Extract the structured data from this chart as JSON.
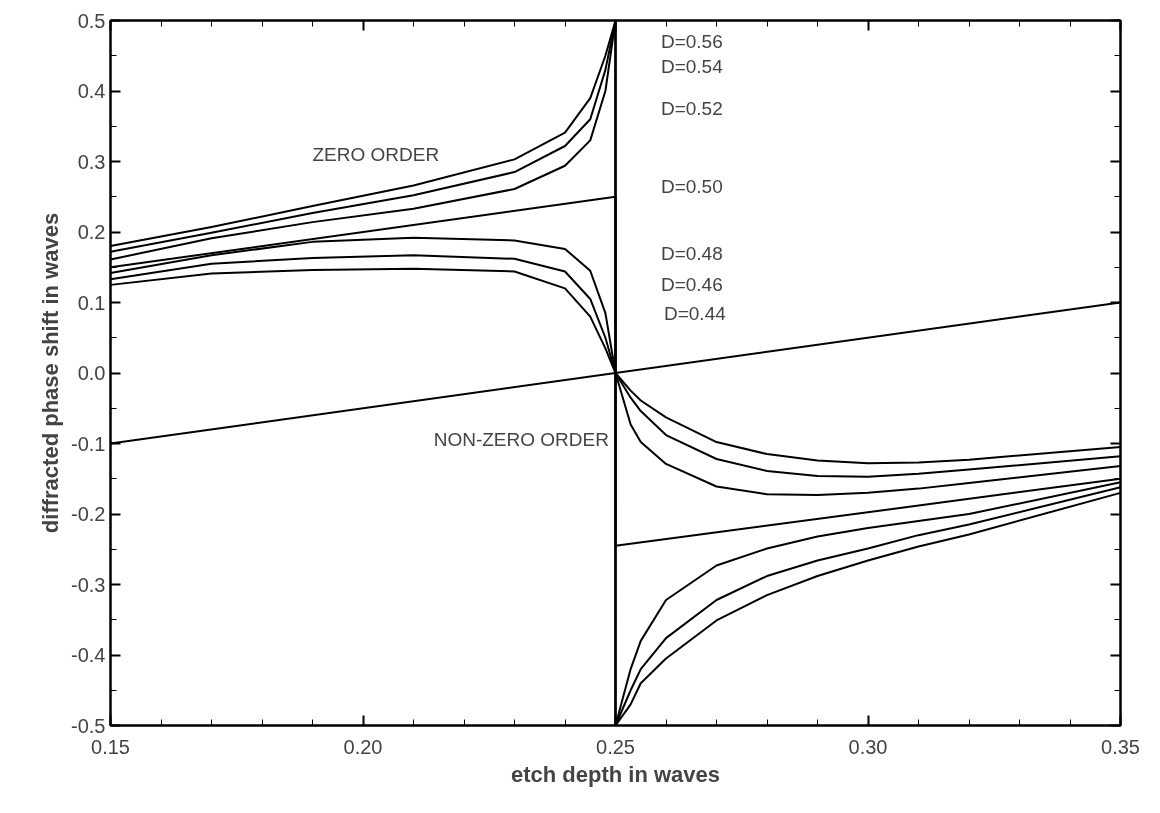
{
  "chart_data": {
    "type": "line",
    "xlabel": "etch depth in waves",
    "ylabel": "diffracted phase shift in waves",
    "xlim": [
      0.15,
      0.35
    ],
    "ylim": [
      -0.5,
      0.5
    ],
    "xticks": [
      {
        "value": 0.15,
        "label": "0.15"
      },
      {
        "value": 0.2,
        "label": "0.20"
      },
      {
        "value": 0.25,
        "label": "0.25"
      },
      {
        "value": 0.3,
        "label": "0.30"
      },
      {
        "value": 0.35,
        "label": "0.35"
      }
    ],
    "yticks": [
      {
        "value": -0.5,
        "label": "-0.5"
      },
      {
        "value": -0.4,
        "label": "-0.4"
      },
      {
        "value": -0.3,
        "label": "-0.3"
      },
      {
        "value": -0.2,
        "label": "-0.2"
      },
      {
        "value": -0.1,
        "label": "-0.1"
      },
      {
        "value": 0,
        "label": "0.0"
      },
      {
        "value": 0.1,
        "label": "0.1"
      },
      {
        "value": 0.2,
        "label": "0.2"
      },
      {
        "value": 0.3,
        "label": "0.3"
      },
      {
        "value": 0.4,
        "label": "0.4"
      },
      {
        "value": 0.5,
        "label": "0.5"
      }
    ],
    "grid": false,
    "marker": "none",
    "line_style": "solid",
    "series": [
      {
        "color": "#000000",
        "x": [
          0.15,
          0.17,
          0.19,
          0.21,
          0.23,
          0.24,
          0.245,
          0.248,
          0.25,
          0.25,
          0.253,
          0.255,
          0.26,
          0.27,
          0.28,
          0.29,
          0.3,
          0.31,
          0.32,
          0.35
        ],
        "values": [
          0.18,
          0.207,
          0.237,
          0.266,
          0.303,
          0.341,
          0.39,
          0.45,
          0.5,
          -0.5,
          -0.47,
          -0.44,
          -0.405,
          -0.351,
          -0.315,
          -0.288,
          -0.266,
          -0.246,
          -0.229,
          -0.17
        ]
      },
      {
        "color": "#000000",
        "x": [
          0.15,
          0.17,
          0.19,
          0.21,
          0.23,
          0.24,
          0.245,
          0.248,
          0.25,
          0.25,
          0.253,
          0.255,
          0.26,
          0.27,
          0.28,
          0.29,
          0.3,
          0.31,
          0.32,
          0.35
        ],
        "values": [
          0.172,
          0.199,
          0.227,
          0.252,
          0.285,
          0.322,
          0.36,
          0.43,
          0.5,
          -0.5,
          -0.45,
          -0.42,
          -0.376,
          -0.322,
          -0.288,
          -0.266,
          -0.249,
          -0.23,
          -0.215,
          -0.162
        ]
      },
      {
        "color": "#000000",
        "x": [
          0.15,
          0.17,
          0.19,
          0.21,
          0.23,
          0.24,
          0.245,
          0.248,
          0.25,
          0.25,
          0.253,
          0.255,
          0.26,
          0.27,
          0.28,
          0.29,
          0.3,
          0.31,
          0.32,
          0.35
        ],
        "values": [
          0.161,
          0.191,
          0.214,
          0.233,
          0.261,
          0.294,
          0.33,
          0.4,
          0.5,
          -0.5,
          -0.42,
          -0.38,
          -0.322,
          -0.273,
          -0.249,
          -0.232,
          -0.22,
          -0.21,
          -0.2,
          -0.155
        ]
      },
      {
        "color": "#000000",
        "x": [
          0.15,
          0.25,
          0.25,
          0.35
        ],
        "values": [
          0.15,
          0.25,
          -0.245,
          -0.15
        ]
      },
      {
        "color": "#000000",
        "x": [
          0.15,
          0.17,
          0.19,
          0.21,
          0.23,
          0.24,
          0.245,
          0.248,
          0.25,
          0.253,
          0.255,
          0.26,
          0.27,
          0.28,
          0.29,
          0.3,
          0.31,
          0.32,
          0.35
        ],
        "values": [
          0.142,
          0.167,
          0.186,
          0.192,
          0.188,
          0.176,
          0.145,
          0.085,
          0,
          -0.073,
          -0.098,
          -0.129,
          -0.161,
          -0.172,
          -0.173,
          -0.17,
          -0.164,
          -0.156,
          -0.132
        ]
      },
      {
        "color": "#000000",
        "x": [
          0.15,
          0.17,
          0.19,
          0.21,
          0.23,
          0.24,
          0.245,
          0.248,
          0.25,
          0.253,
          0.255,
          0.26,
          0.27,
          0.28,
          0.29,
          0.3,
          0.31,
          0.32,
          0.35
        ],
        "values": [
          0.133,
          0.155,
          0.163,
          0.167,
          0.162,
          0.144,
          0.105,
          0.05,
          0,
          -0.035,
          -0.054,
          -0.088,
          -0.122,
          -0.139,
          -0.146,
          -0.147,
          -0.143,
          -0.137,
          -0.118
        ]
      },
      {
        "color": "#000000",
        "x": [
          0.15,
          0.17,
          0.19,
          0.21,
          0.23,
          0.24,
          0.245,
          0.248,
          0.25,
          0.253,
          0.255,
          0.26,
          0.27,
          0.28,
          0.29,
          0.3,
          0.31,
          0.32,
          0.35
        ],
        "values": [
          0.125,
          0.141,
          0.146,
          0.148,
          0.144,
          0.12,
          0.08,
          0.035,
          0,
          -0.025,
          -0.039,
          -0.063,
          -0.098,
          -0.115,
          -0.124,
          -0.128,
          -0.127,
          -0.123,
          -0.105
        ]
      },
      {
        "color": "#000000",
        "x": [
          0.15,
          0.35
        ],
        "values": [
          -0.1,
          0.1
        ]
      }
    ],
    "annotations": [
      "ZERO ORDER",
      "NON-ZERO ORDER",
      "D=0.56",
      "D=0.54",
      "D=0.52",
      "D=0.50",
      "D=0.48",
      "D=0.46",
      "D=0.44"
    ]
  }
}
